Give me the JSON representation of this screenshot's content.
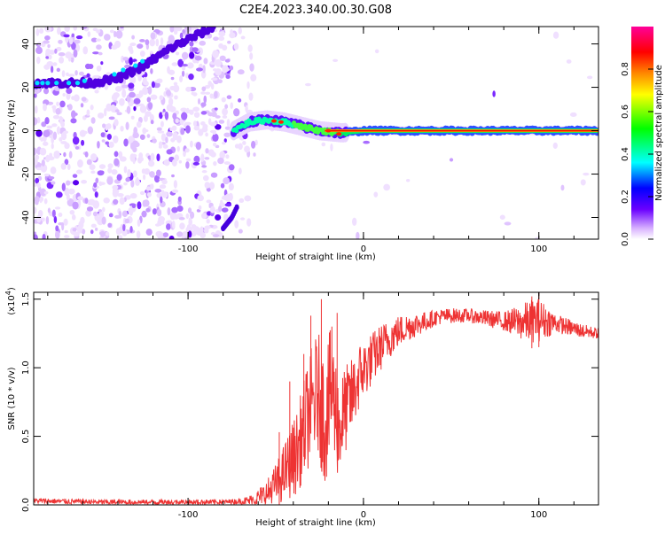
{
  "title": "C2E4.2023.340.00.30.G08",
  "chart_data": [
    {
      "type": "heatmap",
      "xlabel": "Height of straight line (km)",
      "ylabel": "Frequency (Hz)",
      "xlim": [
        -188,
        134
      ],
      "ylim": [
        -50,
        48
      ],
      "xticks": [
        -100,
        0,
        100
      ],
      "yticks": [
        -40,
        -20,
        0,
        20,
        40
      ],
      "features": [
        {
          "name_hint": "",
          "description": "rising tone",
          "points": [
            [
              -188,
              22
            ],
            [
              -178,
              22
            ],
            [
              -165,
              22
            ],
            [
              -155,
              22
            ],
            [
              -140,
              24
            ],
            [
              -125,
              30
            ],
            [
              -110,
              38
            ],
            [
              -95,
              44
            ],
            [
              -85,
              48
            ]
          ]
        },
        {
          "description": "steady carrier",
          "points": [
            [
              -74,
              0
            ],
            [
              -65,
              4
            ],
            [
              -55,
              5
            ],
            [
              -45,
              4
            ],
            [
              -35,
              2
            ],
            [
              -25,
              0
            ],
            [
              -12,
              -1
            ],
            [
              0,
              0
            ],
            [
              50,
              0
            ],
            [
              100,
              0
            ],
            [
              134,
              0
            ]
          ]
        },
        {
          "description": "low feature",
          "points": [
            [
              -80,
              -45
            ],
            [
              -75,
              -40
            ],
            [
              -72,
              -35
            ]
          ]
        }
      ],
      "colorbar": {
        "label": "Normalized spectral amplitude",
        "ticks": [
          0.0,
          0.2,
          0.4,
          0.6,
          0.8
        ],
        "range": [
          0,
          1
        ],
        "colors": [
          "#ffffff",
          "#d9b3ff",
          "#6a00ff",
          "#0000ff",
          "#00ffff",
          "#00ff00",
          "#ffff00",
          "#ff8800",
          "#ff0000",
          "#ff0099"
        ]
      }
    },
    {
      "type": "line",
      "xlabel": "Height of straight line (km)",
      "ylabel": "SNR (10 * v/v)",
      "yscale_label": "(x10",
      "yscale_exp": "4",
      "yscale_close": ")",
      "xlim": [
        -188,
        134
      ],
      "ylim": [
        0,
        1.55
      ],
      "xticks": [
        -100,
        0,
        100
      ],
      "yticks": [
        0.0,
        0.5,
        1.0,
        1.5
      ],
      "ytick_labels": [
        "0.0",
        "0.5",
        "1.0",
        "1.5"
      ],
      "color": "#ee3333",
      "envelope": {
        "x": [
          -188,
          -150,
          -100,
          -80,
          -65,
          -55,
          -48,
          -42,
          -38,
          -34,
          -30,
          -26,
          -22,
          -18,
          -14,
          -10,
          -6,
          -2,
          4,
          10,
          18,
          26,
          34,
          42,
          50,
          60,
          70,
          80,
          90,
          100,
          108,
          116,
          124,
          134
        ],
        "y": [
          0.03,
          0.02,
          0.02,
          0.02,
          0.03,
          0.08,
          0.18,
          0.3,
          0.38,
          0.55,
          0.72,
          0.82,
          0.62,
          0.85,
          0.55,
          0.7,
          0.8,
          0.95,
          1.05,
          1.15,
          1.25,
          1.3,
          1.33,
          1.37,
          1.38,
          1.38,
          1.36,
          1.34,
          1.33,
          1.35,
          1.33,
          1.3,
          1.27,
          1.25
        ]
      },
      "noise": {
        "x": [
          -188,
          -70,
          -60,
          -50,
          -40,
          -30,
          -20,
          -10,
          0,
          20,
          40,
          60,
          80,
          95,
          100,
          110,
          134
        ],
        "amp": [
          0.02,
          0.02,
          0.06,
          0.15,
          0.28,
          0.42,
          0.5,
          0.32,
          0.22,
          0.12,
          0.06,
          0.05,
          0.07,
          0.16,
          0.16,
          0.07,
          0.04
        ]
      },
      "peaks": [
        [
          -48,
          0.53
        ],
        [
          -42,
          0.9
        ],
        [
          -34,
          1.1
        ],
        [
          -30,
          1.38
        ],
        [
          -24,
          1.5
        ],
        [
          -18,
          1.3
        ],
        [
          -15,
          1.4
        ],
        [
          96,
          1.52
        ],
        [
          100,
          1.55
        ]
      ]
    }
  ]
}
